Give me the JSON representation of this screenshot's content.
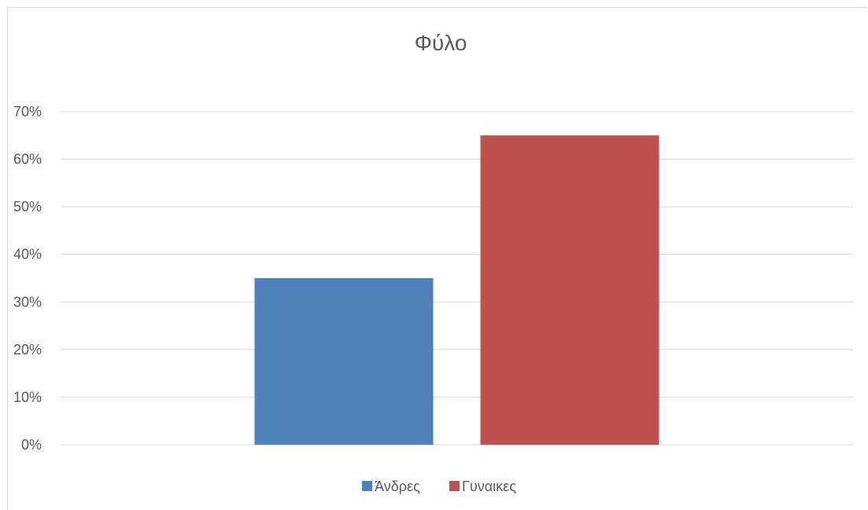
{
  "chart_data": {
    "type": "bar",
    "title": "Φύλο",
    "xlabel": "",
    "ylabel": "",
    "ylim": [
      0,
      0.7
    ],
    "yticks": [
      {
        "value": 0,
        "label": "0%"
      },
      {
        "value": 0.1,
        "label": "10%"
      },
      {
        "value": 0.2,
        "label": "20%"
      },
      {
        "value": 0.3,
        "label": "30%"
      },
      {
        "value": 0.4,
        "label": "40%"
      },
      {
        "value": 0.5,
        "label": "50%"
      },
      {
        "value": 0.6,
        "label": "60%"
      },
      {
        "value": 0.7,
        "label": "70%"
      }
    ],
    "grid": true,
    "legend_position": "bottom",
    "series": [
      {
        "name": "Άνδρες",
        "value": 0.35,
        "color": "#4f81bd"
      },
      {
        "name": "Γυναικες",
        "value": 0.65,
        "color": "#c0504d"
      }
    ]
  }
}
